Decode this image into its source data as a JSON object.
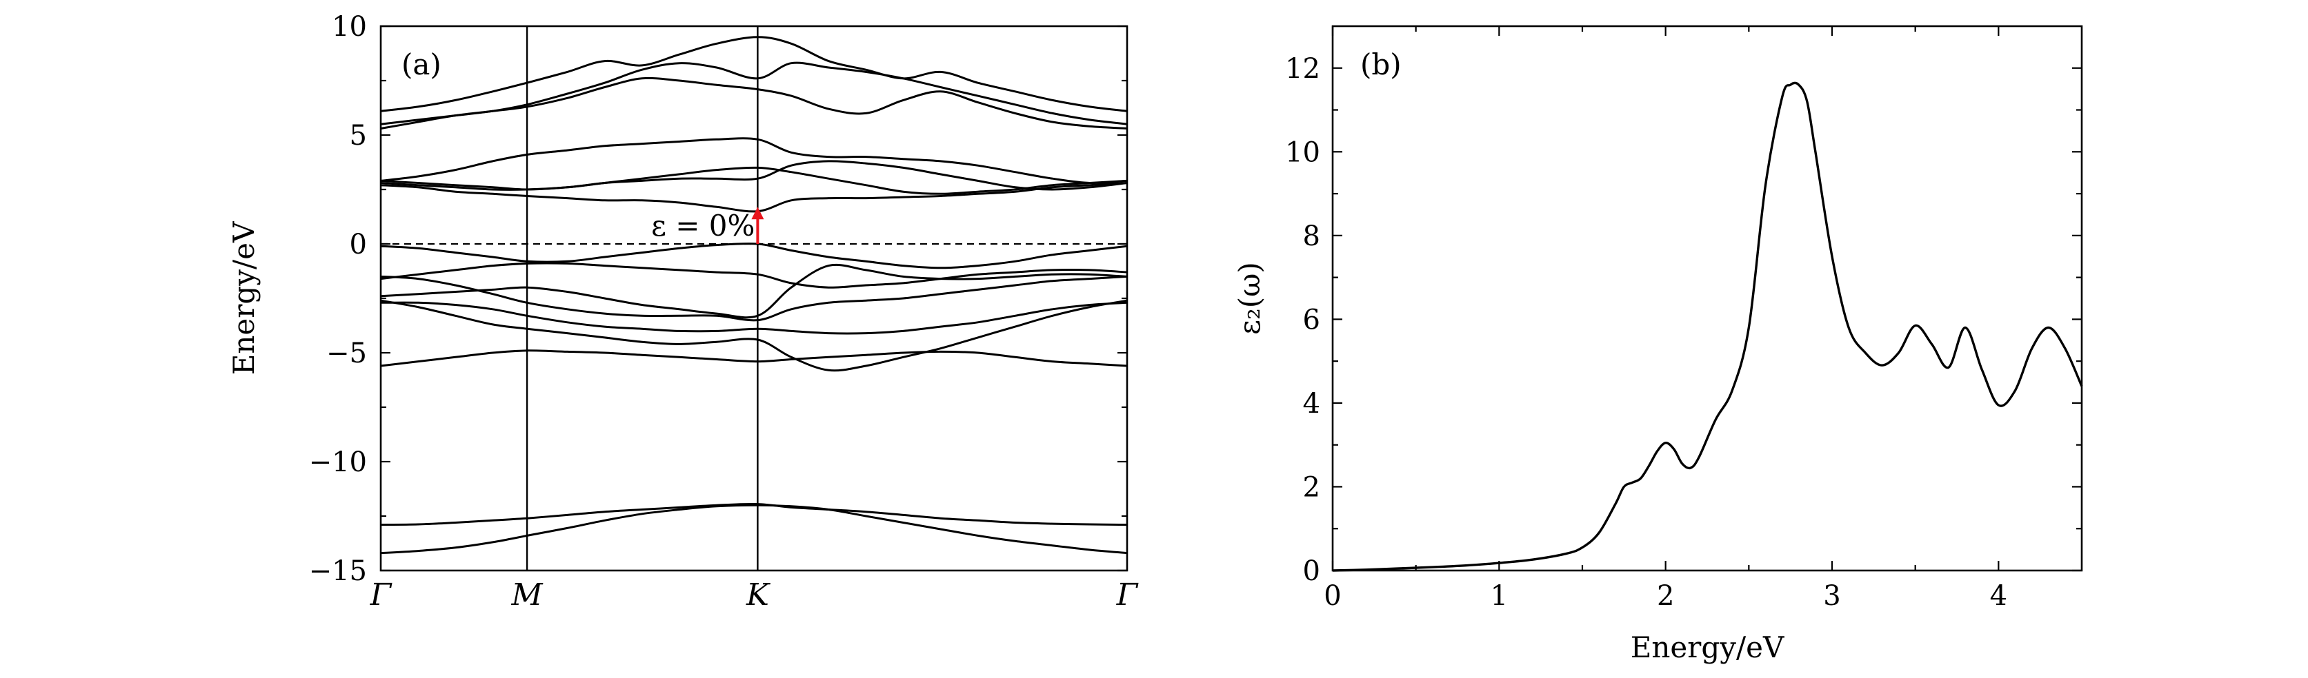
{
  "chart_data": [
    {
      "panel": "(a)",
      "type": "line",
      "ylabel": "Energy/eV",
      "ylim": [
        -15,
        10
      ],
      "yticks": [
        10,
        5,
        0,
        -5,
        -10,
        -15
      ],
      "ytick_labels": [
        "10",
        "5",
        "0",
        "−5",
        "−10",
        "−15"
      ],
      "kpoints": [
        {
          "label": "Γ",
          "pos": 0.0
        },
        {
          "label": "M",
          "pos": 0.196
        },
        {
          "label": "K",
          "pos": 0.505
        },
        {
          "label": "Γ",
          "pos": 1.0
        }
      ],
      "fermi_level": 0,
      "annotation": "ε = 0%",
      "gap_arrow": {
        "k": 0.505,
        "from": 0.0,
        "to": 1.7,
        "color": "#e8141c"
      },
      "x": [
        0,
        0.05,
        0.1,
        0.15,
        0.196,
        0.25,
        0.3,
        0.35,
        0.4,
        0.45,
        0.505,
        0.55,
        0.6,
        0.65,
        0.7,
        0.75,
        0.8,
        0.85,
        0.9,
        0.95,
        1.0
      ],
      "series": [
        {
          "values": [
            -14.2,
            -14.1,
            -13.95,
            -13.7,
            -13.4,
            -13.05,
            -12.7,
            -12.4,
            -12.2,
            -12.05,
            -12.0,
            -12.05,
            -12.2,
            -12.5,
            -12.8,
            -13.1,
            -13.4,
            -13.65,
            -13.85,
            -14.05,
            -14.2
          ]
        },
        {
          "values": [
            -12.9,
            -12.88,
            -12.8,
            -12.7,
            -12.6,
            -12.45,
            -12.3,
            -12.2,
            -12.1,
            -12.0,
            -11.95,
            -12.1,
            -12.2,
            -12.3,
            -12.45,
            -12.6,
            -12.7,
            -12.8,
            -12.85,
            -12.88,
            -12.9
          ]
        },
        {
          "values": [
            -5.6,
            -5.4,
            -5.2,
            -5.0,
            -4.9,
            -4.95,
            -5.0,
            -5.1,
            -5.2,
            -5.3,
            -5.4,
            -5.3,
            -5.2,
            -5.1,
            -5.0,
            -4.95,
            -5.0,
            -5.2,
            -5.4,
            -5.5,
            -5.6
          ]
        },
        {
          "values": [
            -2.6,
            -2.9,
            -3.3,
            -3.7,
            -3.9,
            -4.1,
            -4.3,
            -4.5,
            -4.6,
            -4.5,
            -4.4,
            -5.2,
            -5.8,
            -5.6,
            -5.2,
            -4.8,
            -4.3,
            -3.8,
            -3.3,
            -2.9,
            -2.6
          ]
        },
        {
          "values": [
            -2.7,
            -2.7,
            -2.8,
            -3.0,
            -3.3,
            -3.6,
            -3.8,
            -3.9,
            -4.0,
            -4.0,
            -3.9,
            -4.0,
            -4.1,
            -4.1,
            -4.0,
            -3.8,
            -3.6,
            -3.3,
            -3.0,
            -2.8,
            -2.7
          ]
        },
        {
          "values": [
            -2.4,
            -2.3,
            -2.2,
            -2.1,
            -2.0,
            -2.2,
            -2.5,
            -2.8,
            -3.0,
            -3.2,
            -3.3,
            -2.0,
            -1.0,
            -1.2,
            -1.5,
            -1.6,
            -1.6,
            -1.5,
            -1.4,
            -1.4,
            -1.5
          ]
        },
        {
          "values": [
            -1.5,
            -1.6,
            -1.9,
            -2.3,
            -2.7,
            -3.0,
            -3.2,
            -3.3,
            -3.3,
            -3.3,
            -3.5,
            -3.0,
            -2.7,
            -2.6,
            -2.5,
            -2.3,
            -2.1,
            -1.9,
            -1.7,
            -1.6,
            -1.5
          ]
        },
        {
          "values": [
            -1.6,
            -1.4,
            -1.2,
            -1.0,
            -0.9,
            -0.9,
            -1.0,
            -1.1,
            -1.2,
            -1.3,
            -1.4,
            -1.8,
            -2.0,
            -1.9,
            -1.8,
            -1.6,
            -1.4,
            -1.3,
            -1.2,
            -1.2,
            -1.3
          ]
        },
        {
          "values": [
            -0.1,
            -0.2,
            -0.4,
            -0.6,
            -0.8,
            -0.8,
            -0.6,
            -0.4,
            -0.2,
            -0.05,
            0.0,
            -0.3,
            -0.6,
            -0.8,
            -1.0,
            -1.1,
            -1.0,
            -0.8,
            -0.5,
            -0.3,
            -0.1
          ]
        },
        {
          "values": [
            2.7,
            2.6,
            2.4,
            2.3,
            2.2,
            2.1,
            2.0,
            2.0,
            1.9,
            1.7,
            1.5,
            2.0,
            2.1,
            2.1,
            2.15,
            2.2,
            2.3,
            2.4,
            2.6,
            2.7,
            2.8
          ]
        },
        {
          "values": [
            2.8,
            2.7,
            2.6,
            2.5,
            2.5,
            2.6,
            2.8,
            2.9,
            3.0,
            3.0,
            3.0,
            3.6,
            3.8,
            3.7,
            3.5,
            3.2,
            2.9,
            2.6,
            2.5,
            2.6,
            2.8
          ]
        },
        {
          "values": [
            2.9,
            2.8,
            2.7,
            2.6,
            2.5,
            2.6,
            2.8,
            3.0,
            3.2,
            3.4,
            3.5,
            3.3,
            3.0,
            2.7,
            2.4,
            2.3,
            2.4,
            2.5,
            2.7,
            2.8,
            2.9
          ]
        },
        {
          "values": [
            2.9,
            3.1,
            3.4,
            3.8,
            4.1,
            4.3,
            4.5,
            4.6,
            4.7,
            4.8,
            4.8,
            4.2,
            4.0,
            4.0,
            3.9,
            3.8,
            3.6,
            3.3,
            3.0,
            2.8,
            2.9
          ]
        },
        {
          "values": [
            5.3,
            5.6,
            5.9,
            6.1,
            6.3,
            6.7,
            7.2,
            7.6,
            7.5,
            7.3,
            7.1,
            6.8,
            6.2,
            6.0,
            6.6,
            7.0,
            6.5,
            6.0,
            5.6,
            5.4,
            5.3
          ]
        },
        {
          "values": [
            5.5,
            5.7,
            5.9,
            6.1,
            6.4,
            6.9,
            7.4,
            8.0,
            8.3,
            8.1,
            7.6,
            8.3,
            8.1,
            7.9,
            7.6,
            7.2,
            6.8,
            6.4,
            6.0,
            5.7,
            5.5
          ]
        },
        {
          "values": [
            6.1,
            6.3,
            6.6,
            7.0,
            7.4,
            7.9,
            8.4,
            8.2,
            8.7,
            9.2,
            9.5,
            9.2,
            8.4,
            8.0,
            7.6,
            7.9,
            7.4,
            7.0,
            6.6,
            6.3,
            6.1
          ]
        }
      ]
    },
    {
      "panel": "(b)",
      "type": "line",
      "xlabel": "Energy/eV",
      "ylabel": "ε₂(ω)",
      "xlim": [
        0,
        4.5
      ],
      "ylim": [
        0,
        13
      ],
      "xticks": [
        0,
        1,
        2,
        3,
        4
      ],
      "yticks": [
        0,
        2,
        4,
        6,
        8,
        10,
        12
      ],
      "x": [
        0,
        0.2,
        0.4,
        0.6,
        0.8,
        1.0,
        1.2,
        1.4,
        1.5,
        1.6,
        1.7,
        1.75,
        1.8,
        1.85,
        1.9,
        1.95,
        2.0,
        2.05,
        2.1,
        2.15,
        2.2,
        2.3,
        2.4,
        2.5,
        2.6,
        2.7,
        2.75,
        2.8,
        2.85,
        2.9,
        3.0,
        3.1,
        3.2,
        3.3,
        3.4,
        3.5,
        3.6,
        3.7,
        3.8,
        3.9,
        4.0,
        4.1,
        4.2,
        4.3,
        4.4,
        4.5
      ],
      "values": [
        0,
        0.02,
        0.05,
        0.08,
        0.12,
        0.18,
        0.26,
        0.4,
        0.55,
        0.9,
        1.6,
        2.0,
        2.1,
        2.2,
        2.5,
        2.85,
        3.05,
        2.9,
        2.55,
        2.45,
        2.7,
        3.6,
        4.3,
        5.8,
        9.2,
        11.3,
        11.6,
        11.6,
        11.2,
        10.0,
        7.5,
        5.8,
        5.2,
        4.9,
        5.2,
        5.85,
        5.4,
        4.85,
        5.8,
        4.8,
        3.95,
        4.3,
        5.3,
        5.8,
        5.3,
        4.4
      ]
    }
  ]
}
